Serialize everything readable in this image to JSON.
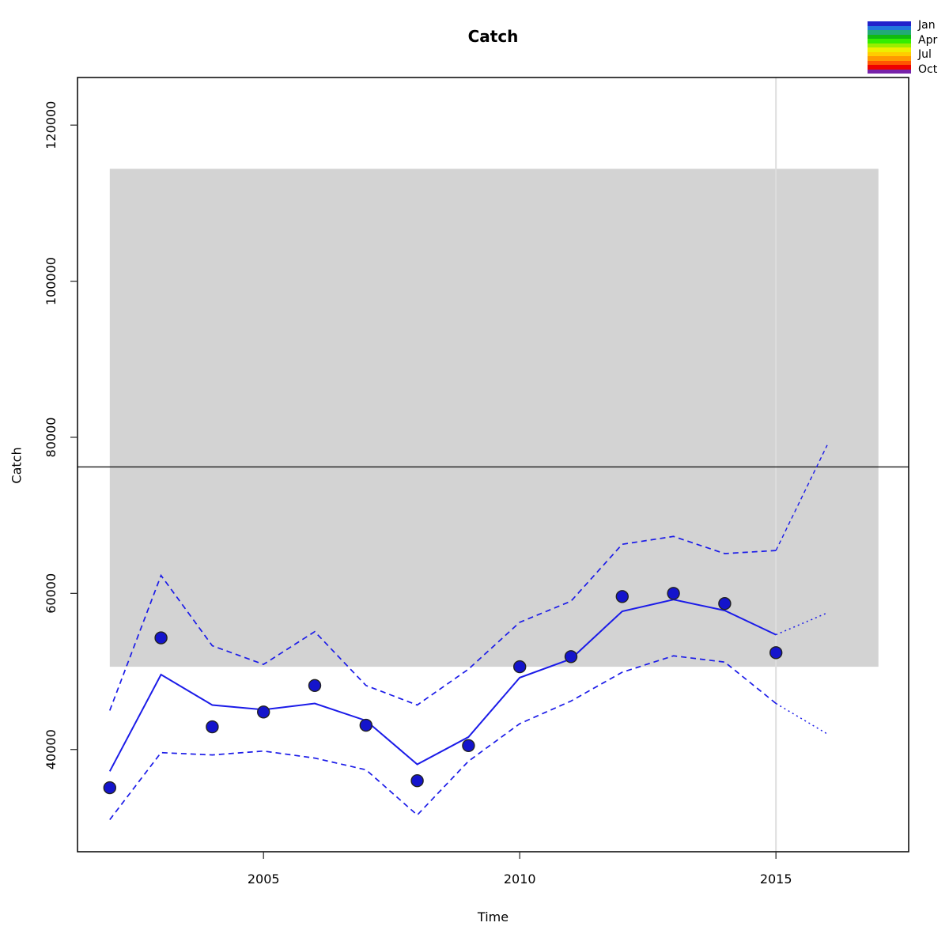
{
  "title": "Catch",
  "xlabel": "Time",
  "ylabel": "Catch",
  "legend": {
    "labels": [
      "Jan",
      "Apr",
      "Jul",
      "Oct"
    ],
    "colors": [
      "#2222cc",
      "#2277dd",
      "#22aa77",
      "#11bb11",
      "#33ee00",
      "#99ee00",
      "#eeee00",
      "#ffcc00",
      "#ff9900",
      "#ff5500",
      "#ee0000",
      "#7722aa"
    ]
  },
  "chart_data": {
    "type": "line",
    "title": "Catch",
    "xlabel": "Time",
    "ylabel": "Catch",
    "xlim": [
      2001.37,
      2017.59
    ],
    "ylim": [
      26900,
      126100
    ],
    "x_ticks": [
      2005,
      2010,
      2015
    ],
    "y_ticks": [
      40000,
      60000,
      80000,
      100000,
      120000
    ],
    "grid": false,
    "legend_position": "top-right",
    "series": [
      {
        "name": "catch-observations",
        "style": "points",
        "color": "#1414cc",
        "x": [
          2002,
          2003,
          2004,
          2005,
          2006,
          2007,
          2008,
          2009,
          2010,
          2011,
          2012,
          2013,
          2014,
          2015
        ],
        "values": [
          35100,
          54300,
          42900,
          44800,
          48200,
          43100,
          36000,
          40500,
          50600,
          51900,
          59600,
          60000,
          58700,
          52400
        ]
      },
      {
        "name": "catch-fit-median",
        "style": "solid",
        "color": "#1b1be8",
        "x": [
          2002,
          2003,
          2004,
          2005,
          2006,
          2007,
          2008,
          2009,
          2010,
          2011,
          2012,
          2013,
          2014,
          2015
        ],
        "values": [
          37200,
          49600,
          45700,
          45100,
          45900,
          43700,
          38100,
          41600,
          49200,
          51600,
          57700,
          59200,
          57800,
          54700
        ]
      },
      {
        "name": "catch-fit-projection",
        "style": "dotted",
        "color": "#1b1be8",
        "x": [
          2015,
          2016
        ],
        "values": [
          54700,
          57500
        ]
      },
      {
        "name": "upper-confidence-band",
        "style": "dashed",
        "color": "#1b1be8",
        "x": [
          2002,
          2003,
          2004,
          2005,
          2006,
          2007,
          2008,
          2009,
          2010,
          2011,
          2012,
          2013,
          2014,
          2015
        ],
        "values": [
          45000,
          62300,
          53300,
          50900,
          55100,
          48200,
          45700,
          50300,
          56300,
          59000,
          66300,
          67300,
          65100,
          65500
        ]
      },
      {
        "name": "upper-confidence-projection",
        "style": "dashed-fine",
        "color": "#1b1be8",
        "x": [
          2015,
          2016
        ],
        "values": [
          65500,
          79000
        ]
      },
      {
        "name": "lower-confidence-band",
        "style": "dashed",
        "color": "#1b1be8",
        "x": [
          2002,
          2003,
          2004,
          2005,
          2006,
          2007,
          2008,
          2009,
          2010,
          2011,
          2012,
          2013,
          2014,
          2015
        ],
        "values": [
          31000,
          39600,
          39300,
          39800,
          38900,
          37400,
          31600,
          38500,
          43300,
          46200,
          49900,
          52000,
          51200,
          45900
        ]
      },
      {
        "name": "lower-confidence-projection",
        "style": "dotted",
        "color": "#1b1be8",
        "x": [
          2015,
          2016
        ],
        "values": [
          45900,
          42000
        ]
      }
    ],
    "reference": {
      "hline_y": 76200,
      "vline_x": 2015,
      "shaded_box": {
        "x": [
          2002,
          2017
        ],
        "y": [
          50600,
          114400
        ],
        "color": "#d3d3d3"
      }
    }
  }
}
